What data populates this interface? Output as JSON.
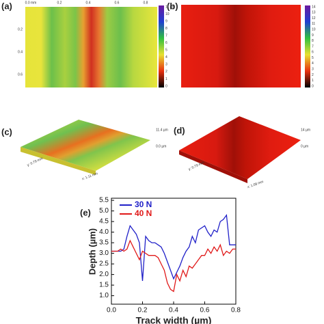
{
  "panel_a": {
    "label": "(a)",
    "x_axis": [
      "0.0 mm",
      "0.2",
      "0.4",
      "0.6",
      "0.8"
    ],
    "y_axis": [
      "0.2",
      "0.4",
      "0.6"
    ],
    "colorbar": [
      "11 µm",
      "10",
      "9",
      "8",
      "7",
      "6",
      "5",
      "4",
      "3",
      "2",
      "1",
      "0"
    ]
  },
  "panel_b": {
    "label": "(b)",
    "colorbar": [
      "14",
      "13",
      "12",
      "11",
      "10",
      "9",
      "8",
      "7",
      "6",
      "5",
      "4",
      "3",
      "2",
      "1",
      "0"
    ]
  },
  "panel_c": {
    "label": "(c)",
    "z_top": "11.4 µm",
    "z_bottom": "0.0 µm",
    "y_extent": "y: 0.79 mm",
    "x_extent": "x: 1.11 mm"
  },
  "panel_d": {
    "label": "(d)",
    "z_top": "14 µm",
    "z_bottom": "0 µm",
    "y_extent": "y: 0.79 mm",
    "x_extent": "x: 1.08 mm"
  },
  "chart_data": {
    "type": "line",
    "label": "(e)",
    "x_label": "Track width (µm)",
    "y_label": "Depth (µm)",
    "x": [
      0,
      0.02,
      0.04,
      0.06,
      0.08,
      0.1,
      0.12,
      0.14,
      0.16,
      0.18,
      0.2,
      0.22,
      0.24,
      0.26,
      0.28,
      0.3,
      0.32,
      0.34,
      0.36,
      0.38,
      0.4,
      0.42,
      0.44,
      0.46,
      0.48,
      0.5,
      0.52,
      0.54,
      0.56,
      0.58,
      0.6,
      0.62,
      0.64,
      0.66,
      0.68,
      0.7,
      0.72,
      0.74,
      0.76,
      0.78,
      0.8
    ],
    "series": [
      {
        "name": "30 N",
        "color": "#1f1fc8",
        "values": [
          3.1,
          3.1,
          3.1,
          3.1,
          3.2,
          3.8,
          4.3,
          4.1,
          3.9,
          3.5,
          1.7,
          3.8,
          3.6,
          3.5,
          3.5,
          3.4,
          3.3,
          3.0,
          2.6,
          2.2,
          1.8,
          2.1,
          2.4,
          2.8,
          3.1,
          3.3,
          3.8,
          3.5,
          4.1,
          4.2,
          4.3,
          4.0,
          3.8,
          4.1,
          4.0,
          4.5,
          4.6,
          4.8,
          3.4,
          3.4,
          3.4
        ]
      },
      {
        "name": "40 N",
        "color": "#e01818",
        "values": [
          3.1,
          3.1,
          3.1,
          3.2,
          3.1,
          3.2,
          3.6,
          3.3,
          3.0,
          2.7,
          3.1,
          3.0,
          2.9,
          2.9,
          2.9,
          2.8,
          2.5,
          2.2,
          1.6,
          1.3,
          1.2,
          2.0,
          1.7,
          2.2,
          1.9,
          2.4,
          2.3,
          2.5,
          2.7,
          2.9,
          2.9,
          3.2,
          3.0,
          3.3,
          3.1,
          3.4,
          2.9,
          3.1,
          3.0,
          3.2,
          3.2
        ]
      }
    ],
    "xlim": [
      0,
      0.8
    ],
    "xticks": [
      {
        "value": 0,
        "label": "0.0"
      },
      0.2,
      0.4,
      0.6,
      0.8
    ],
    "ylim": [
      0.6,
      5.6
    ],
    "yticks": [
      {
        "value": 1,
        "label": "1.0"
      },
      1.5,
      {
        "value": 2,
        "label": "2.0"
      },
      2.5,
      {
        "value": 3,
        "label": "3.0"
      },
      3.5,
      {
        "value": 4,
        "label": "4.0"
      },
      4.5,
      {
        "value": 5,
        "label": "5.0"
      },
      5.5
    ],
    "legend": "upper left",
    "grid": false
  }
}
